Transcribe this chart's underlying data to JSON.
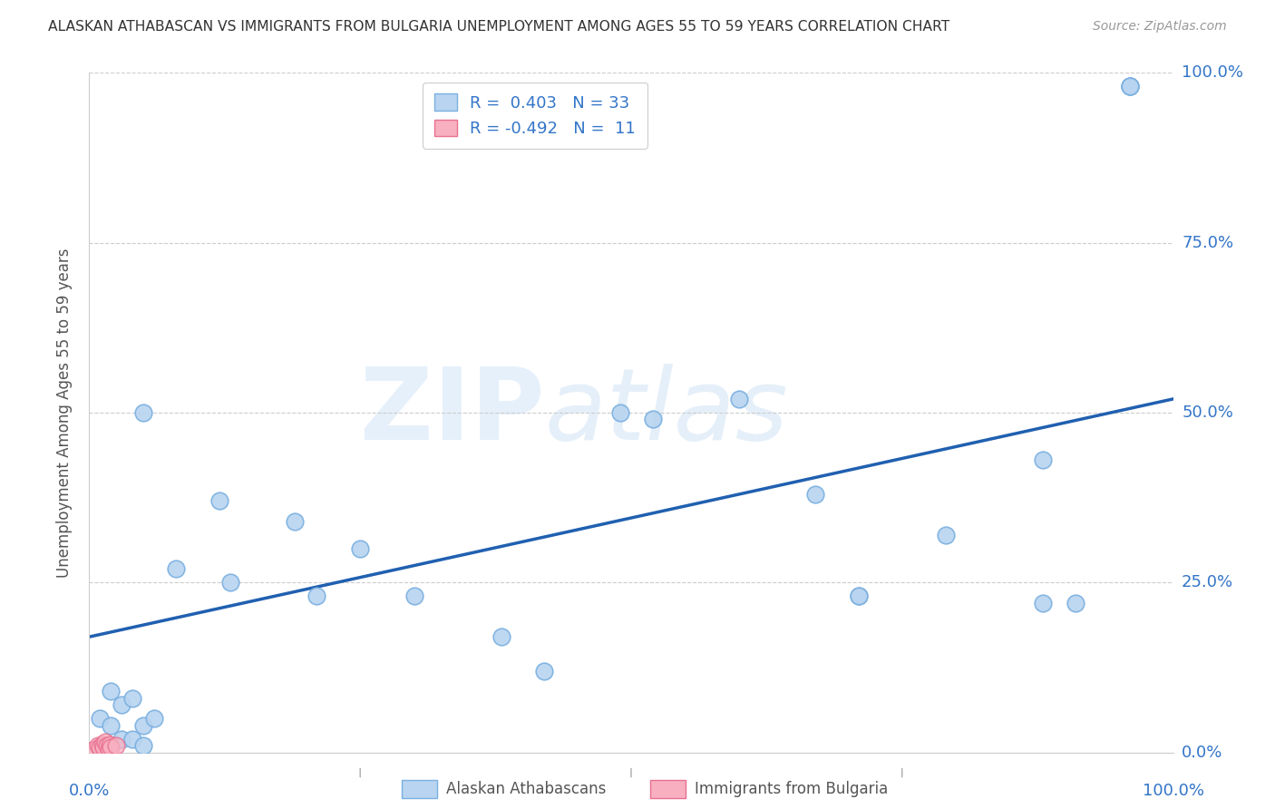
{
  "title": "ALASKAN ATHABASCAN VS IMMIGRANTS FROM BULGARIA UNEMPLOYMENT AMONG AGES 55 TO 59 YEARS CORRELATION CHART",
  "source": "Source: ZipAtlas.com",
  "ylabel": "Unemployment Among Ages 55 to 59 years",
  "xlim": [
    0.0,
    1.0
  ],
  "ylim": [
    0.0,
    1.0
  ],
  "xticks": [
    0.0,
    0.25,
    0.5,
    0.75,
    1.0
  ],
  "yticks": [
    0.0,
    0.25,
    0.5,
    0.75,
    1.0
  ],
  "blue_scatter_x": [
    0.05,
    0.12,
    0.08,
    0.13,
    0.19,
    0.21,
    0.25,
    0.3,
    0.38,
    0.42,
    0.49,
    0.52,
    0.6,
    0.67,
    0.71,
    0.71,
    0.79,
    0.88,
    0.88,
    0.91,
    0.96,
    0.96,
    0.96
  ],
  "blue_scatter_y": [
    0.5,
    0.37,
    0.27,
    0.25,
    0.34,
    0.23,
    0.3,
    0.23,
    0.17,
    0.12,
    0.5,
    0.49,
    0.52,
    0.38,
    0.23,
    0.23,
    0.32,
    0.22,
    0.43,
    0.22,
    0.98,
    0.98,
    0.98
  ],
  "blue_scatter_x2": [
    0.01,
    0.02,
    0.02,
    0.03,
    0.03,
    0.04,
    0.04,
    0.05,
    0.05,
    0.06
  ],
  "blue_scatter_y2": [
    0.05,
    0.09,
    0.04,
    0.02,
    0.07,
    0.02,
    0.08,
    0.04,
    0.01,
    0.05
  ],
  "pink_scatter_x": [
    0.005,
    0.008,
    0.01,
    0.012,
    0.013,
    0.015,
    0.016,
    0.018,
    0.019,
    0.02,
    0.025
  ],
  "pink_scatter_y": [
    0.005,
    0.01,
    0.008,
    0.012,
    0.007,
    0.015,
    0.01,
    0.005,
    0.012,
    0.008,
    0.01
  ],
  "blue_line_x": [
    0.0,
    1.0
  ],
  "blue_line_y": [
    0.17,
    0.52
  ],
  "blue_color": "#b8d4f0",
  "blue_edge_color": "#7ab0e0",
  "pink_color": "#f8b0c0",
  "pink_edge_color": "#e87090",
  "line_color": "#2060b0",
  "legend_R_blue": "R =  0.403   N = 33",
  "legend_R_pink": "R = -0.492   N =  11",
  "watermark_zip": "ZIP",
  "watermark_atlas": "atlas",
  "marker_size": 180,
  "background_color": "#ffffff",
  "grid_color": "#cccccc"
}
